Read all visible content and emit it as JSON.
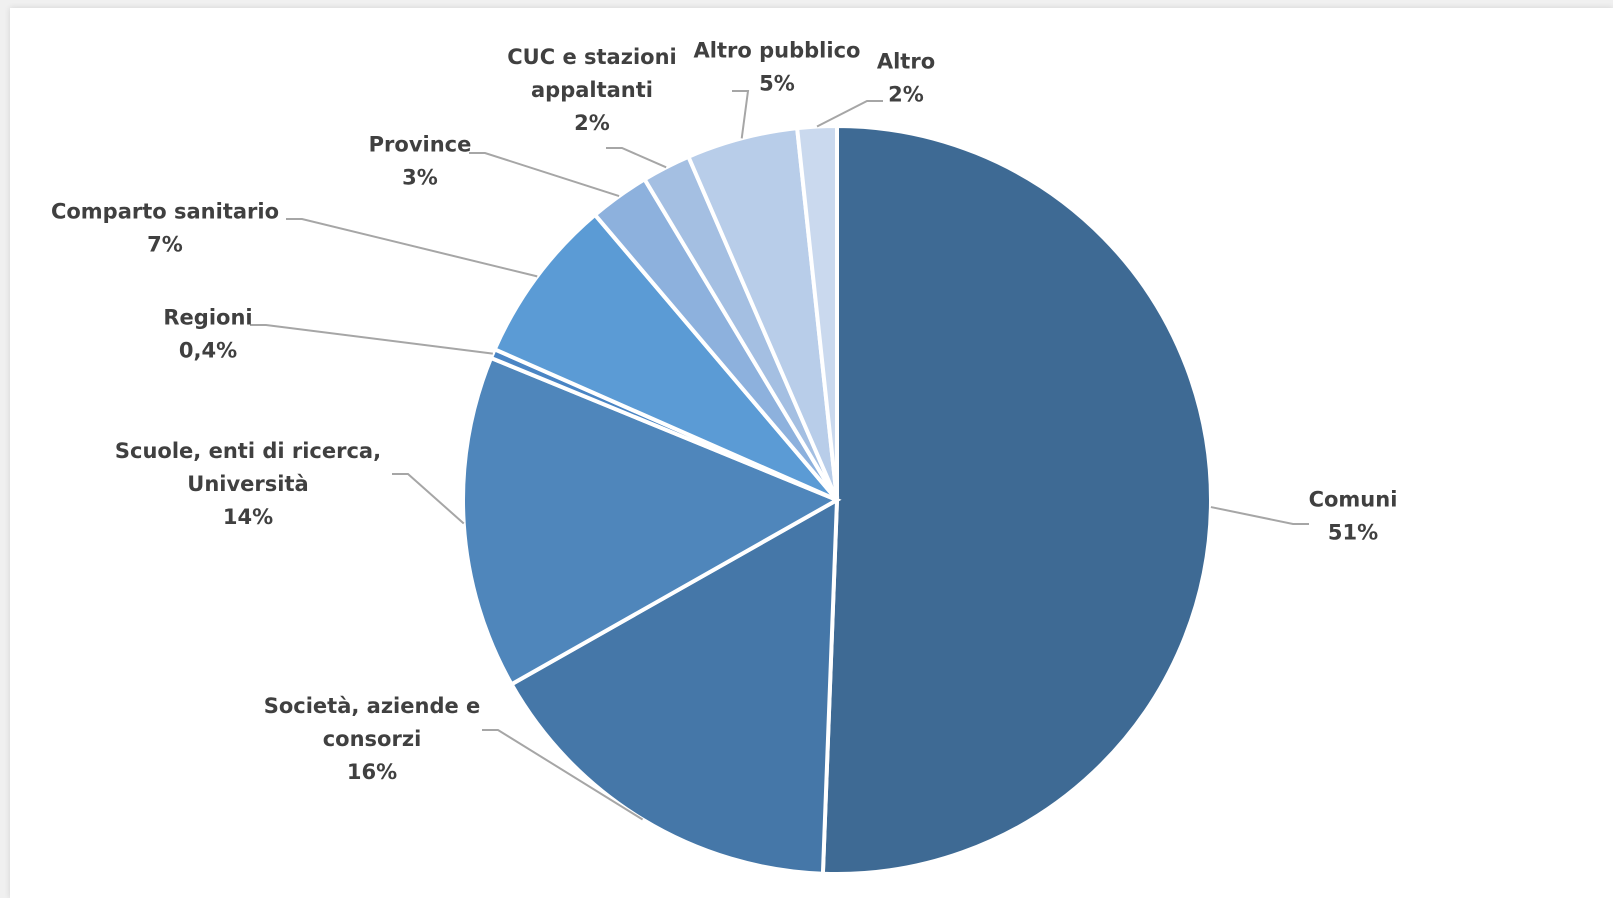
{
  "chart_data": {
    "type": "pie",
    "title": "",
    "start_angle_deg": 0,
    "direction": "clockwise",
    "legend": "none",
    "slices": [
      {
        "label": [
          "Comuni"
        ],
        "value": 50.6,
        "value_label": "51%",
        "color": "#3e6a94"
      },
      {
        "label": [
          "Società, aziende e",
          "consorzi"
        ],
        "value": 16.2,
        "value_label": "16%",
        "color": "#4577a8"
      },
      {
        "label": [
          "Scuole, enti di ricerca,",
          "Università"
        ],
        "value": 14.4,
        "value_label": "14%",
        "color": "#4f86bb"
      },
      {
        "label": [
          "Regioni"
        ],
        "value": 0.4,
        "value_label": "0,4%",
        "color": "#4a85c4"
      },
      {
        "label": [
          "Comparto sanitario"
        ],
        "value": 7.2,
        "value_label": "7%",
        "color": "#5b9bd5"
      },
      {
        "label": [
          "Province"
        ],
        "value": 2.6,
        "value_label": "3%",
        "color": "#8db1dd"
      },
      {
        "label": [
          "CUC e stazioni",
          "appaltanti"
        ],
        "value": 2.1,
        "value_label": "2%",
        "color": "#a4bfe2"
      },
      {
        "label": [
          "Altro pubblico"
        ],
        "value": 4.8,
        "value_label": "5%",
        "color": "#b8cde9"
      },
      {
        "label": [
          "Altro"
        ],
        "value": 1.7,
        "value_label": "2%",
        "color": "#cad9ee"
      }
    ]
  }
}
